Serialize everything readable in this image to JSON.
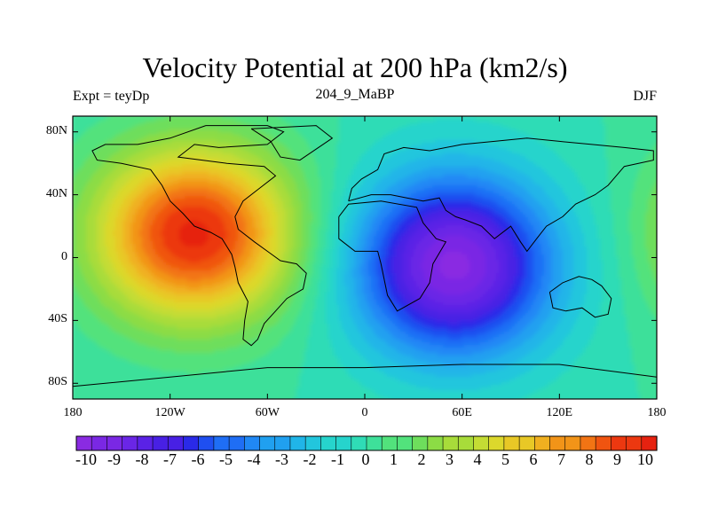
{
  "chart_data": {
    "type": "heatmap",
    "title": "Velocity Potential at 200 hPa (km2/s)",
    "subtitle_left": "Expt = teyDp",
    "subtitle_center": "204_9_MaBP",
    "subtitle_right": "DJF",
    "x_ticks": [
      "180",
      "120W",
      "60W",
      "0",
      "60E",
      "120E",
      "180"
    ],
    "x_tick_values": [
      -180,
      -120,
      -60,
      0,
      60,
      120,
      180
    ],
    "y_ticks": [
      "80N",
      "40N",
      "0",
      "40S",
      "80S"
    ],
    "y_tick_values": [
      80,
      40,
      0,
      -40,
      -80
    ],
    "xlim": [
      -180,
      180
    ],
    "ylim": [
      -90,
      90
    ],
    "colorbar_labels": [
      "-10",
      "-9",
      "-8",
      "-7",
      "-6",
      "-5",
      "-4",
      "-3",
      "-2",
      "-1",
      "0",
      "1",
      "2",
      "3",
      "4",
      "5",
      "6",
      "7",
      "8",
      "9",
      "10"
    ],
    "colorbar_range": [
      -10.5,
      10.5
    ],
    "colorbar_levels": 38,
    "field_centers": [
      {
        "name": "positive-maximum",
        "lon": -105,
        "lat": 15,
        "value": 10
      },
      {
        "name": "negative-minimum",
        "lon": 55,
        "lat": -5,
        "value": -10
      }
    ]
  },
  "colors": {
    "palette": [
      "#8a2be2",
      "#7a28e4",
      "#6a26e6",
      "#5a22e6",
      "#4820e4",
      "#2a2ae8",
      "#1f4ff0",
      "#1f6ef5",
      "#2088f5",
      "#20a0f0",
      "#20b5e8",
      "#22c6dd",
      "#26d4cc",
      "#2fdcb6",
      "#3ee09a",
      "#52e27c",
      "#6ede5c",
      "#8cdc45",
      "#a8dc3a",
      "#c4dc34",
      "#dcd82c",
      "#e8c826",
      "#f0b020",
      "#f29418",
      "#f27414",
      "#f05410",
      "#ec3810",
      "#e62210"
    ]
  }
}
